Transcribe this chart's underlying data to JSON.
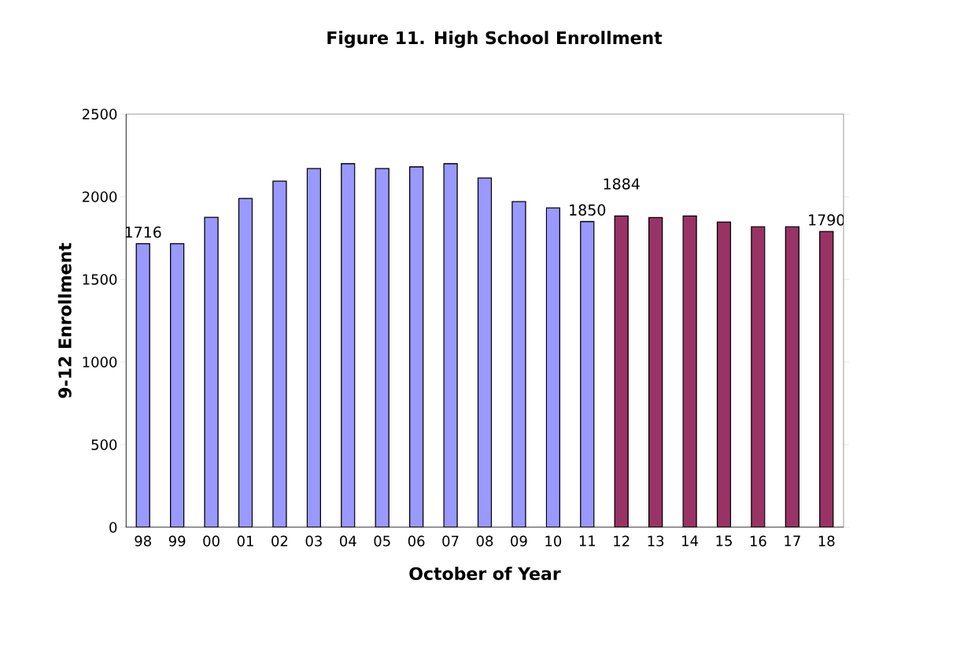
{
  "chart_data": {
    "type": "bar",
    "title": "Figure 11. High School Enrollment",
    "xlabel": "October of Year",
    "ylabel": "9-12 Enrollment",
    "categories": [
      "98",
      "99",
      "00",
      "01",
      "02",
      "03",
      "04",
      "05",
      "06",
      "07",
      "08",
      "09",
      "10",
      "11",
      "12",
      "13",
      "14",
      "15",
      "16",
      "17",
      "18"
    ],
    "values": [
      1716,
      1716,
      1876,
      1990,
      2095,
      2171,
      2200,
      2171,
      2181,
      2200,
      2114,
      1971,
      1933,
      1850,
      1884,
      1874,
      1884,
      1847,
      1818,
      1818,
      1790
    ],
    "colors": [
      "#9999ff",
      "#9999ff",
      "#9999ff",
      "#9999ff",
      "#9999ff",
      "#9999ff",
      "#9999ff",
      "#9999ff",
      "#9999ff",
      "#9999ff",
      "#9999ff",
      "#9999ff",
      "#9999ff",
      "#9999ff",
      "#993366",
      "#993366",
      "#993366",
      "#993366",
      "#993366",
      "#993366",
      "#993366"
    ],
    "value_labels": [
      "1716",
      null,
      null,
      null,
      null,
      null,
      null,
      null,
      null,
      null,
      null,
      null,
      null,
      "1850",
      "1884",
      null,
      null,
      null,
      null,
      null,
      "1790"
    ],
    "ylim": [
      0,
      2500
    ],
    "yticks": [
      0,
      500,
      1000,
      1500,
      2000,
      2500
    ],
    "grid": false
  }
}
